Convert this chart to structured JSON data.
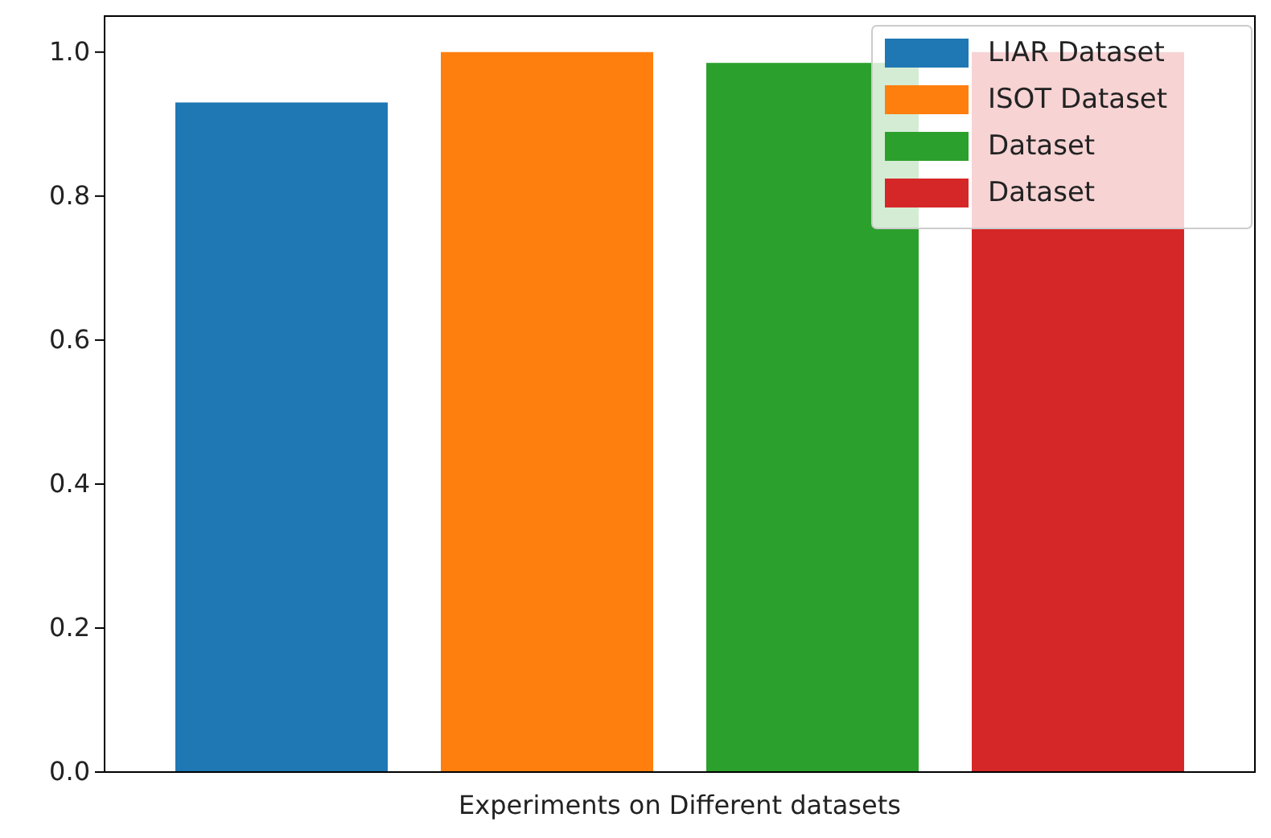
{
  "chart_data": {
    "type": "bar",
    "xlabel": "Experiments on Different datasets",
    "categories": [
      null
    ],
    "series": [
      {
        "name": "LIAR Dataset",
        "color": "#1f77b4",
        "values": [
          0.93
        ]
      },
      {
        "name": "ISOT Dataset",
        "color": "#ff7f0e",
        "values": [
          1.0
        ]
      },
      {
        "name": "Dataset",
        "color": "#2ca02c",
        "values": [
          0.985
        ]
      },
      {
        "name": "Dataset",
        "color": "#d62728",
        "values": [
          1.0
        ]
      }
    ],
    "ylim": [
      0,
      1.05
    ],
    "yticks": [
      {
        "value": 0,
        "label": "0.0"
      },
      {
        "value": 0.2,
        "label": "0.2"
      },
      {
        "value": 0.4,
        "label": "0.4"
      },
      {
        "value": 0.6,
        "label": "0.6"
      },
      {
        "value": 0.8,
        "label": "0.8"
      },
      {
        "value": 1.0,
        "label": "1.0"
      }
    ],
    "grid": false,
    "legend": "top right"
  }
}
